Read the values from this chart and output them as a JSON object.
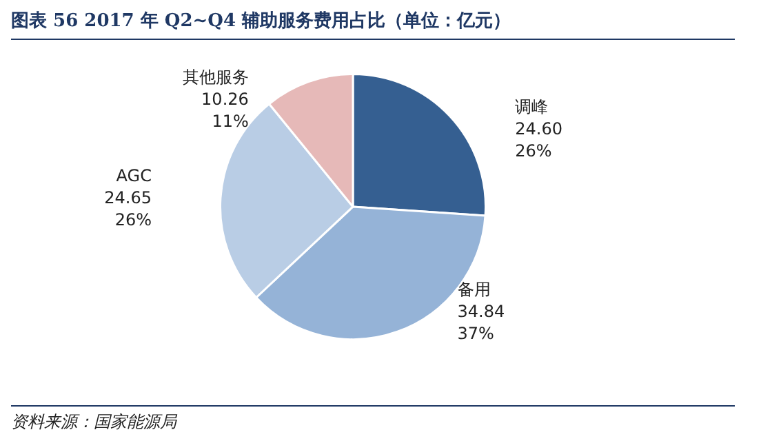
{
  "chart_data": {
    "type": "pie",
    "title": "图表 56   2017 年 Q2~Q4 辅助服务费用占比（单位：亿元）",
    "categories": [
      "调峰",
      "备用",
      "AGC",
      "其他服务"
    ],
    "values": [
      24.6,
      34.84,
      24.65,
      10.26
    ],
    "colors": [
      "#355f91",
      "#95b3d7",
      "#b9cde5",
      "#e6b9b8"
    ],
    "value_labels": [
      "24.60\n26%",
      "34.84\n37%",
      "24.65\n26%",
      "10.26\n11%"
    ],
    "annotations": [
      "资料来源：国家能源局"
    ]
  }
}
